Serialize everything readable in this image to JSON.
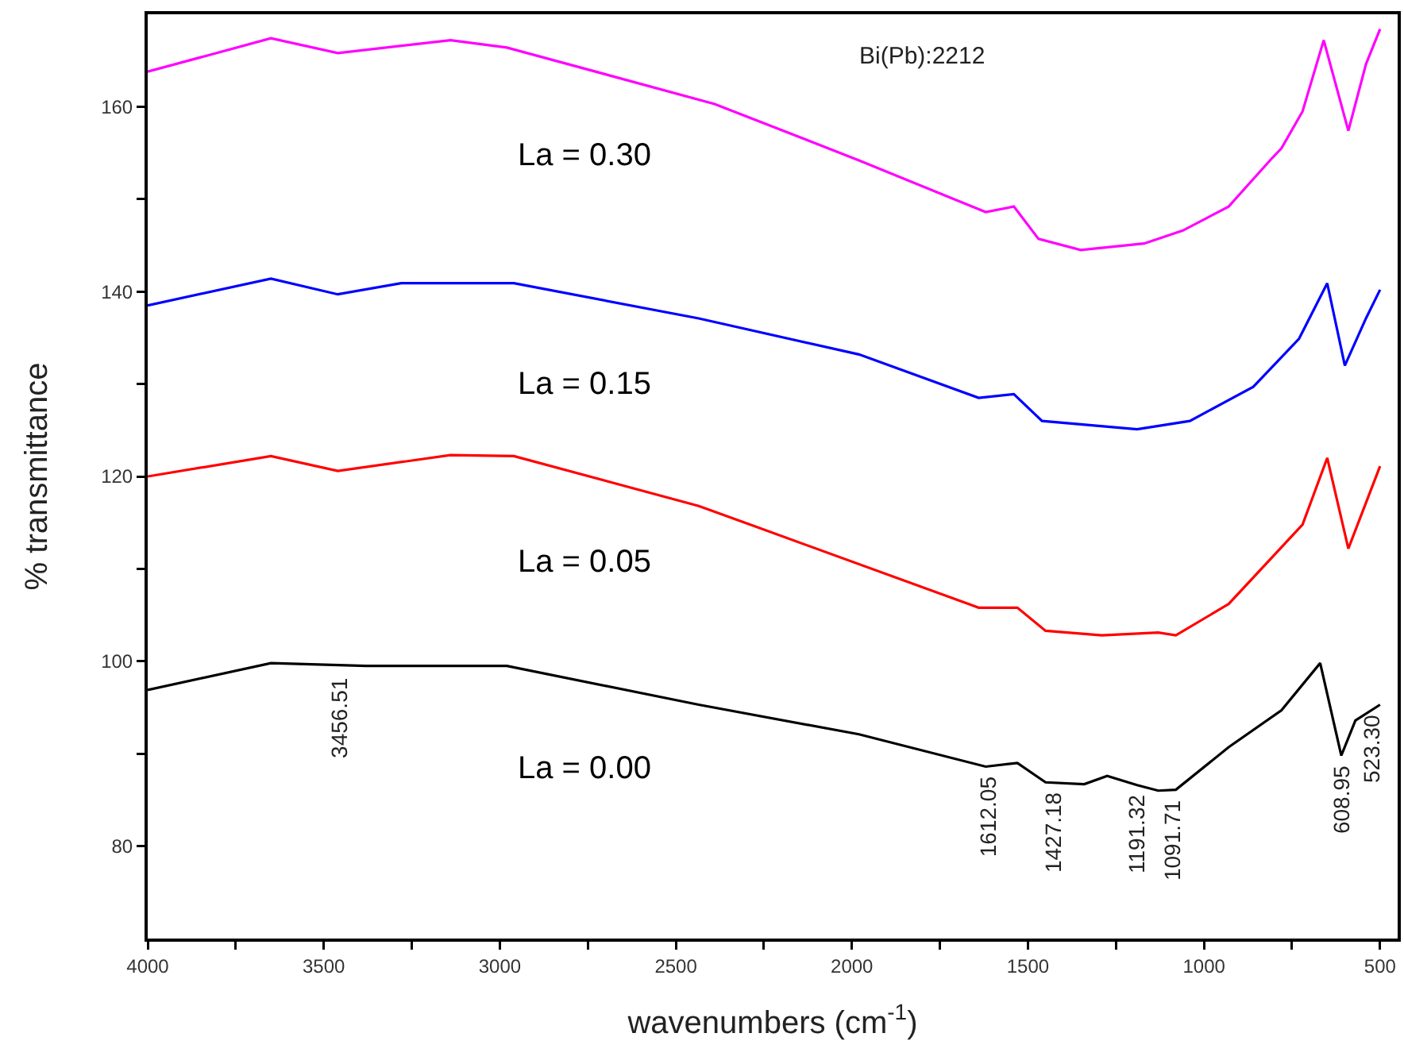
{
  "chart_data": {
    "type": "line",
    "xlabel": "wavenumbers (cm$^{-1}$)",
    "ylabel": "% transmittance",
    "xlim": [
      4000,
      450
    ],
    "ylim": [
      70,
      170
    ],
    "xticks": [
      4000,
      {
        "value": 3750,
        "label": null
      },
      3500,
      {
        "value": 3250,
        "label": null
      },
      3000,
      {
        "value": 2750,
        "label": null
      },
      2500,
      {
        "value": 2250,
        "label": null
      },
      2000,
      {
        "value": 1750,
        "label": null
      },
      1500,
      {
        "value": 1250,
        "label": null
      },
      1000,
      {
        "value": 750,
        "label": null
      },
      500
    ],
    "yticks": [
      80,
      {
        "value": 90,
        "label": null
      },
      100,
      {
        "value": 110,
        "label": null
      },
      120,
      {
        "value": 130,
        "label": null
      },
      140,
      {
        "value": 150,
        "label": null
      },
      160
    ],
    "grid": false,
    "legend": false,
    "marker": "none",
    "line_style": "solid",
    "series": [
      {
        "name": "La = 0.30",
        "color": "#ff00ff",
        "x": [
          4000,
          3650,
          3460,
          3140,
          2980,
          2390,
          1980,
          1620,
          1540,
          1470,
          1350,
          1170,
          1060,
          930,
          810,
          780,
          720,
          660,
          590,
          540,
          500
        ],
        "values": [
          163.8,
          167.4,
          165.8,
          167.2,
          166.4,
          160.3,
          154.2,
          148.6,
          149.2,
          145.7,
          144.5,
          145.2,
          146.6,
          149.2,
          154.3,
          155.5,
          159.5,
          167.2,
          157.4,
          164.6,
          168.4
        ]
      },
      {
        "name": "La = 0.15",
        "color": "#0000ff",
        "x": [
          4000,
          3650,
          3460,
          3280,
          2960,
          2435,
          1980,
          1640,
          1540,
          1460,
          1190,
          1040,
          860,
          730,
          650,
          600,
          540,
          500
        ],
        "values": [
          138.5,
          141.4,
          139.7,
          140.9,
          140.9,
          137.1,
          133.2,
          128.5,
          128.9,
          126.0,
          125.1,
          126.0,
          129.7,
          134.9,
          140.9,
          132.0,
          137.1,
          140.2
        ]
      },
      {
        "name": "La = 0.05",
        "color": "#ff0000",
        "x": [
          4000,
          3650,
          3460,
          3140,
          2960,
          2435,
          2290,
          1640,
          1530,
          1450,
          1290,
          1130,
          1080,
          930,
          720,
          650,
          590,
          500
        ],
        "values": [
          120.0,
          122.2,
          120.6,
          122.3,
          122.2,
          116.8,
          114.8,
          105.8,
          105.8,
          103.3,
          102.8,
          103.1,
          102.8,
          106.2,
          114.8,
          122.0,
          112.2,
          121.1
        ]
      },
      {
        "name": "La = 0.00",
        "color": "#000000",
        "x": [
          4000,
          3650,
          3380,
          2980,
          2435,
          1980,
          1620,
          1530,
          1450,
          1340,
          1275,
          1190,
          1130,
          1080,
          930,
          780,
          670,
          610,
          570,
          500
        ],
        "values": [
          96.9,
          99.8,
          99.5,
          99.5,
          95.3,
          92.1,
          88.6,
          89.0,
          86.9,
          86.7,
          87.6,
          86.6,
          86.0,
          86.1,
          90.7,
          94.7,
          99.8,
          89.8,
          93.6,
          95.3
        ]
      }
    ],
    "annotations": [
      "Bi(Pb):2212",
      {
        "text": "3456.51",
        "x": 3456.51,
        "y": 99.3
      },
      {
        "text": "1612.05",
        "x": 1612.05,
        "y": 88.6
      },
      {
        "text": "1427.18",
        "x": 1427.18,
        "y": 86.9
      },
      {
        "text": "1191.32",
        "x": 1191.32,
        "y": 86.6
      },
      {
        "text": "1091.71",
        "x": 1091.71,
        "y": 86.1
      },
      {
        "text": "608.95",
        "x": 608.95,
        "y": 89.8
      },
      {
        "text": "523.30",
        "x": 523.3,
        "y": 95.3
      }
    ]
  }
}
